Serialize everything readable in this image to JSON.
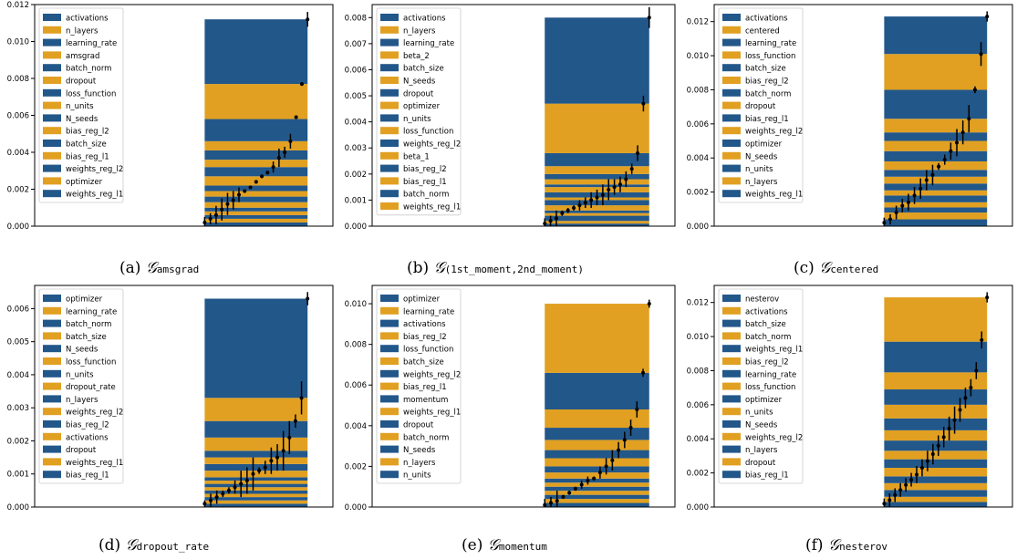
{
  "colors": {
    "blue": "#22578a",
    "orange": "#e1a021",
    "errbar": "#000000",
    "frame": "#000000"
  },
  "panels": [
    {
      "caption_prefix": "(a)",
      "caption_symbol": "𝒢",
      "caption_sub": "amsgrad",
      "chart_data": {
        "type": "bar",
        "stacking": "interleaved-area",
        "ylim": [
          0,
          0.012
        ],
        "yticks": [
          "0.000",
          "0.002",
          "0.004",
          "0.006",
          "0.008",
          "0.010",
          "0.012"
        ],
        "legend": [
          "activations",
          "n_layers",
          "learning_rate",
          "amsgrad",
          "batch_norm",
          "dropout",
          "loss_function",
          "n_units",
          "N_seeds",
          "bias_reg_l2",
          "batch_size",
          "bias_reg_l1",
          "weights_reg_l2",
          "optimizer",
          "weights_reg_l1"
        ],
        "stack_boundaries": [
          0,
          0.0002,
          0.0004,
          0.0006,
          0.0008,
          0.001,
          0.0013,
          0.0016,
          0.0019,
          0.0022,
          0.0027,
          0.0032,
          0.0036,
          0.0041,
          0.0046,
          0.0058,
          0.0077,
          0.0112
        ],
        "points": [
          0.0002,
          0.0004,
          0.0006,
          0.0009,
          0.0012,
          0.0014,
          0.0017,
          0.0019,
          0.0021,
          0.0024,
          0.0027,
          0.0029,
          0.0032,
          0.0037,
          0.004,
          0.0046,
          0.0059,
          0.0077,
          0.0112
        ],
        "errors": [
          0.0003,
          0.0003,
          0.0005,
          0.0006,
          0.0006,
          0.0005,
          0.0004,
          0.0001,
          0.0001,
          0.0001,
          0.0001,
          0.0001,
          0.0003,
          0.0005,
          0.0003,
          0.0004,
          0.0001,
          0.0001,
          0.0004
        ]
      }
    },
    {
      "caption_prefix": "(b)",
      "caption_symbol": "𝒢",
      "caption_sub": "(1st_moment,2nd_moment)",
      "chart_data": {
        "type": "bar",
        "stacking": "interleaved-area",
        "ylim": [
          0,
          0.0085
        ],
        "yticks": [
          "0.000",
          "0.001",
          "0.002",
          "0.003",
          "0.004",
          "0.005",
          "0.006",
          "0.007",
          "0.008"
        ],
        "legend": [
          "activations",
          "n_layers",
          "learning_rate",
          "beta_2",
          "batch_size",
          "N_seeds",
          "dropout",
          "optimizer",
          "n_units",
          "loss_function",
          "weights_reg_l2",
          "beta_1",
          "bias_reg_l2",
          "bias_reg_l1",
          "batch_norm",
          "weights_reg_l1"
        ],
        "stack_boundaries": [
          0,
          0.0001,
          0.0002,
          0.0004,
          0.0005,
          0.0006,
          0.0008,
          0.001,
          0.0011,
          0.0013,
          0.0015,
          0.0016,
          0.0018,
          0.002,
          0.0023,
          0.0028,
          0.0047,
          0.008
        ],
        "points": [
          0.0001,
          0.0002,
          0.0003,
          0.0005,
          0.0006,
          0.0007,
          0.0008,
          0.0009,
          0.001,
          0.0011,
          0.0012,
          0.0014,
          0.0015,
          0.0016,
          0.0018,
          0.0022,
          0.0028,
          0.0047,
          0.008
        ],
        "errors": [
          0.0002,
          0.0002,
          0.0003,
          0.0001,
          0.0001,
          0.0001,
          0.0002,
          0.0002,
          0.0003,
          0.0003,
          0.0004,
          0.0004,
          0.0003,
          0.0003,
          0.0003,
          0.0002,
          0.0003,
          0.0003,
          0.0004
        ]
      }
    },
    {
      "caption_prefix": "(c)",
      "caption_symbol": "𝒢",
      "caption_sub": "centered",
      "chart_data": {
        "type": "bar",
        "stacking": "interleaved-area",
        "ylim": [
          0,
          0.013
        ],
        "yticks": [
          "0.000",
          "0.002",
          "0.004",
          "0.006",
          "0.008",
          "0.010",
          "0.012"
        ],
        "legend": [
          "activations",
          "centered",
          "learning_rate",
          "loss_function",
          "batch_size",
          "bias_reg_l2",
          "batch_norm",
          "dropout",
          "bias_reg_l1",
          "weights_reg_l2",
          "optimizer",
          "N_seeds",
          "n_units",
          "n_layers",
          "weights_reg_l1"
        ],
        "stack_boundaries": [
          0,
          0.0004,
          0.0008,
          0.0011,
          0.0014,
          0.0018,
          0.0021,
          0.0025,
          0.0029,
          0.0033,
          0.0038,
          0.0044,
          0.005,
          0.0055,
          0.0063,
          0.008,
          0.0101,
          0.0123
        ],
        "points": [
          0.0002,
          0.0004,
          0.0008,
          0.0012,
          0.0014,
          0.0018,
          0.0022,
          0.0027,
          0.003,
          0.0035,
          0.0039,
          0.0044,
          0.0049,
          0.0055,
          0.0063,
          0.008,
          0.0101,
          0.0123
        ],
        "errors": [
          0.0003,
          0.0003,
          0.0004,
          0.0004,
          0.0005,
          0.0005,
          0.0006,
          0.0006,
          0.0006,
          0.0002,
          0.0003,
          0.0005,
          0.0008,
          0.0007,
          0.0008,
          0.0002,
          0.0007,
          0.0003
        ]
      }
    },
    {
      "caption_prefix": "(d)",
      "caption_symbol": "𝒢",
      "caption_sub": "dropout_rate",
      "chart_data": {
        "type": "bar",
        "stacking": "interleaved-area",
        "ylim": [
          0,
          0.0067
        ],
        "yticks": [
          "0.000",
          "0.001",
          "0.002",
          "0.003",
          "0.004",
          "0.005",
          "0.006"
        ],
        "legend": [
          "optimizer",
          "learning_rate",
          "batch_norm",
          "batch_size",
          "N_seeds",
          "loss_function",
          "n_units",
          "dropout_rate",
          "n_layers",
          "weights_reg_l2",
          "bias_reg_l2",
          "activations",
          "dropout",
          "weights_reg_l1",
          "bias_reg_l1"
        ],
        "stack_boundaries": [
          0,
          0.0001,
          0.0002,
          0.0003,
          0.0004,
          0.0005,
          0.0006,
          0.0007,
          0.0008,
          0.0009,
          0.0011,
          0.0013,
          0.0015,
          0.0017,
          0.0021,
          0.0026,
          0.0033,
          0.0063
        ],
        "points": [
          0.0001,
          0.0002,
          0.0003,
          0.0004,
          0.0005,
          0.0006,
          0.0007,
          0.0008,
          0.001,
          0.0011,
          0.0012,
          0.0014,
          0.0015,
          0.0017,
          0.0021,
          0.0026,
          0.0033,
          0.0063
        ],
        "errors": [
          0.0001,
          0.0002,
          0.0002,
          0.0001,
          0.0001,
          0.0002,
          0.0004,
          0.0004,
          0.0005,
          0.0001,
          0.0002,
          0.0004,
          0.0004,
          0.0006,
          0.0005,
          0.0002,
          0.0005,
          0.0002
        ]
      }
    },
    {
      "caption_prefix": "(e)",
      "caption_symbol": "𝒢",
      "caption_sub": "momentum",
      "chart_data": {
        "type": "bar",
        "stacking": "interleaved-area",
        "ylim": [
          0,
          0.0109
        ],
        "yticks": [
          "0.000",
          "0.002",
          "0.004",
          "0.006",
          "0.008",
          "0.010"
        ],
        "legend": [
          "optimizer",
          "learning_rate",
          "activations",
          "bias_reg_l2",
          "loss_function",
          "batch_size",
          "weights_reg_l2",
          "bias_reg_l1",
          "momentum",
          "weights_reg_l1",
          "dropout",
          "batch_norm",
          "N_seeds",
          "n_layers",
          "n_units"
        ],
        "stack_boundaries": [
          0,
          0.0002,
          0.0004,
          0.0006,
          0.0008,
          0.001,
          0.0012,
          0.0014,
          0.0017,
          0.002,
          0.0024,
          0.0028,
          0.0033,
          0.0039,
          0.0048,
          0.0066,
          0.01
        ],
        "points": [
          0.0001,
          0.0002,
          0.0003,
          0.0005,
          0.0007,
          0.0009,
          0.0011,
          0.0013,
          0.0014,
          0.0017,
          0.002,
          0.0023,
          0.0028,
          0.0033,
          0.0039,
          0.0048,
          0.0066,
          0.01
        ],
        "errors": [
          0.0003,
          0.0003,
          0.0005,
          0.0001,
          0.0001,
          0.0001,
          0.0002,
          0.0002,
          0.0001,
          0.0003,
          0.0004,
          0.0005,
          0.0004,
          0.0004,
          0.0004,
          0.0004,
          0.0002,
          0.0002
        ]
      }
    },
    {
      "caption_prefix": "(f)",
      "caption_symbol": "𝒢",
      "caption_sub": "nesterov",
      "chart_data": {
        "type": "bar",
        "stacking": "interleaved-area",
        "ylim": [
          0,
          0.013
        ],
        "yticks": [
          "0.000",
          "0.002",
          "0.004",
          "0.006",
          "0.008",
          "0.010",
          "0.012"
        ],
        "legend": [
          "nesterov",
          "activations",
          "batch_size",
          "batch_norm",
          "weights_reg_l1",
          "bias_reg_l2",
          "learning_rate",
          "loss_function",
          "optimizer",
          "n_units",
          "N_seeds",
          "weights_reg_l2",
          "n_layers",
          "dropout",
          "bias_reg_l1"
        ],
        "stack_boundaries": [
          0,
          0.0003,
          0.0006,
          0.001,
          0.0014,
          0.0018,
          0.0023,
          0.0028,
          0.0033,
          0.0039,
          0.0045,
          0.0052,
          0.006,
          0.0069,
          0.0079,
          0.0097,
          0.0123
        ],
        "points": [
          0.0002,
          0.0004,
          0.0007,
          0.001,
          0.0013,
          0.0016,
          0.0019,
          0.0023,
          0.0027,
          0.0031,
          0.0036,
          0.0041,
          0.0046,
          0.0051,
          0.0057,
          0.0064,
          0.007,
          0.008,
          0.0098,
          0.0123
        ],
        "errors": [
          0.0003,
          0.0004,
          0.0004,
          0.0004,
          0.0004,
          0.0004,
          0.0005,
          0.0005,
          0.0006,
          0.0006,
          0.0006,
          0.0006,
          0.0007,
          0.0008,
          0.0007,
          0.0006,
          0.0005,
          0.0005,
          0.0005,
          0.0003
        ]
      }
    }
  ]
}
